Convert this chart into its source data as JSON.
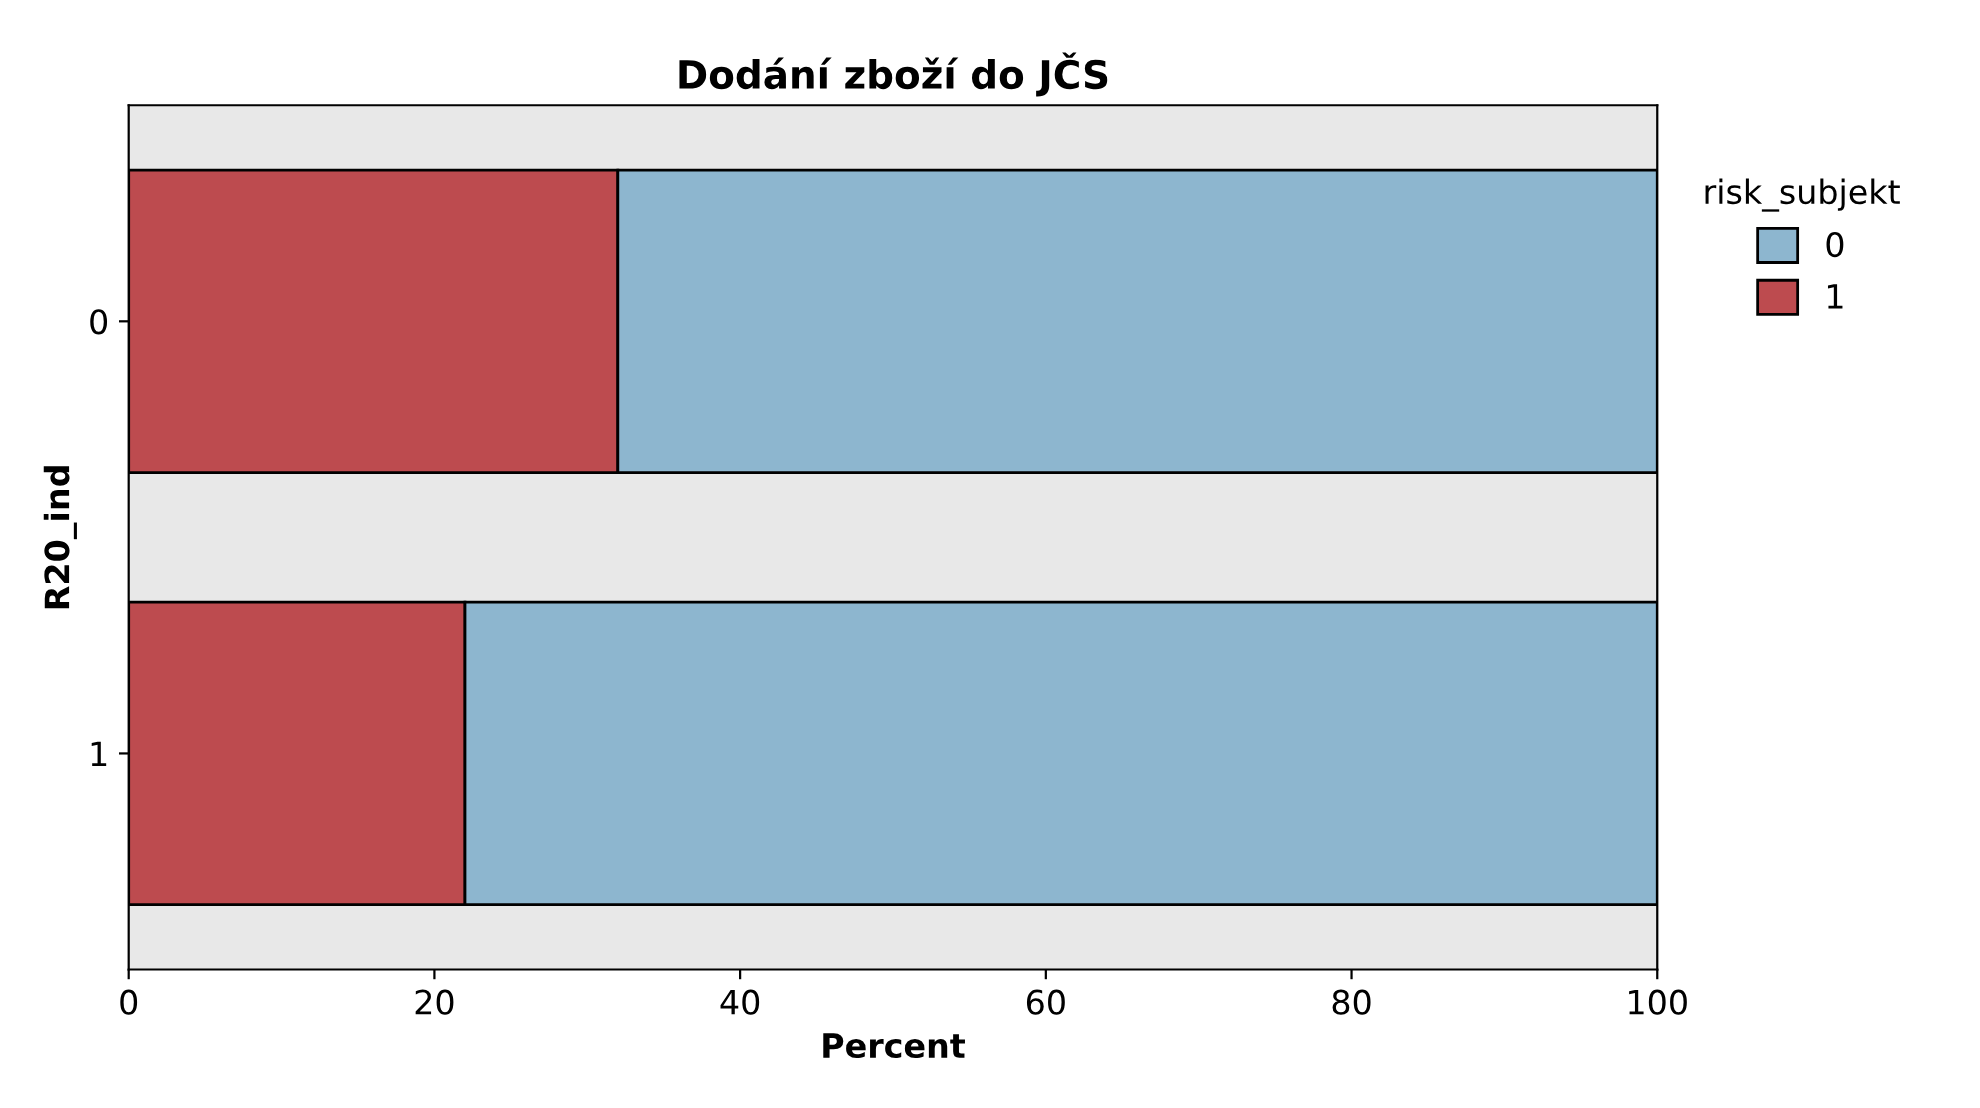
{
  "chart_data": {
    "type": "bar",
    "orientation": "horizontal",
    "stacked": true,
    "title": "Dodání zboží do JČS",
    "xlabel": "Percent",
    "ylabel": "R20_ind",
    "legend_title": "risk_subjekt",
    "legend": "right",
    "categories": [
      "0",
      "1"
    ],
    "series": [
      {
        "name": "1",
        "color": "#bd4b4f",
        "values": [
          32,
          22
        ]
      },
      {
        "name": "0",
        "color": "#8db6cf",
        "values": [
          68,
          78
        ]
      }
    ],
    "xlim": [
      0,
      100
    ],
    "xticks": [
      0,
      20,
      40,
      60,
      80,
      100
    ],
    "grid": false
  }
}
